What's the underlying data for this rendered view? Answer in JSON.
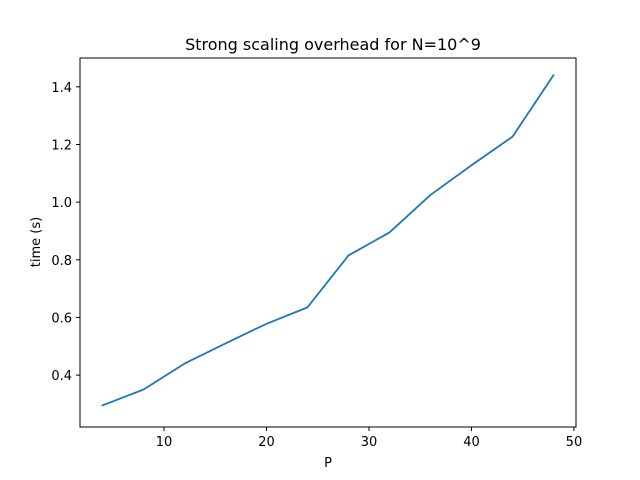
{
  "chart_data": {
    "type": "line",
    "title": "Strong scaling overhead for N=10^9",
    "xlabel": "P",
    "ylabel": "time (s)",
    "xlim": [
      1.8,
      50.2
    ],
    "ylim": [
      0.22,
      1.5
    ],
    "xticks": [
      10,
      20,
      30,
      40,
      50
    ],
    "yticks": [
      0.4,
      0.6,
      0.8,
      1.0,
      1.2,
      1.4
    ],
    "xtick_labels": [
      "10",
      "20",
      "30",
      "40",
      "50"
    ],
    "ytick_labels": [
      "0.4",
      "0.6",
      "0.8",
      "1.0",
      "1.2",
      "1.4"
    ],
    "grid": false,
    "colors": {
      "line": "#1f77b4"
    },
    "series": [
      {
        "x": [
          4,
          8,
          12,
          16,
          20,
          24,
          28,
          32,
          36,
          40,
          44,
          48
        ],
        "values": [
          0.295,
          0.35,
          0.44,
          0.51,
          0.578,
          0.635,
          0.815,
          0.895,
          1.025,
          1.128,
          1.227,
          1.44
        ]
      }
    ]
  }
}
